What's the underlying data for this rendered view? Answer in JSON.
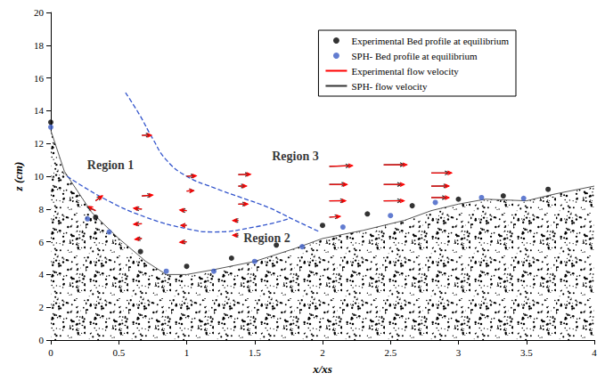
{
  "chart_data": {
    "type": "scatter",
    "x_label": "x/xs",
    "y_label": "z (cm)",
    "xlim": [
      0,
      4
    ],
    "xticks": [
      0,
      0.5,
      1,
      1.5,
      2,
      2.5,
      3,
      3.5,
      4
    ],
    "ylim": [
      0,
      20
    ],
    "yticks": [
      0,
      2,
      4,
      6,
      8,
      10,
      12,
      14,
      16,
      18,
      20
    ],
    "grid": false,
    "legend": "upper right",
    "series": [
      {
        "name": "Experimental Bed profile at equilibrium",
        "type": "scatter",
        "marker": "circle",
        "color": "#000000",
        "x": [
          0,
          0.33,
          0.66,
          1.0,
          1.33,
          1.66,
          2.0,
          2.33,
          2.66,
          3.0,
          3.33,
          3.66
        ],
        "values": [
          13.3,
          7.5,
          5.4,
          4.5,
          5.0,
          5.8,
          7.0,
          7.7,
          8.2,
          8.6,
          8.8,
          9.2
        ]
      },
      {
        "name": "SPH- Bed profile at equilibrium",
        "type": "scatter",
        "marker": "circle",
        "color": "#3b5bc4",
        "x": [
          0,
          0.27,
          0.43,
          0.85,
          1.2,
          1.5,
          1.85,
          2.15,
          2.5,
          2.83,
          3.17,
          3.48
        ],
        "values": [
          13.0,
          7.4,
          6.6,
          4.2,
          4.2,
          4.8,
          5.7,
          6.9,
          7.6,
          8.4,
          8.7,
          8.65
        ]
      },
      {
        "name": "Experimental flow velocity",
        "type": "vector",
        "color": "#ff0000",
        "vectors": [
          [
            0.33,
            8.5,
            0.05,
            0.3
          ],
          [
            0.33,
            7.9,
            -0.05,
            0.25
          ],
          [
            0.67,
            12.5,
            0.07,
            0.0
          ],
          [
            0.67,
            8.8,
            0.08,
            0.05
          ],
          [
            0.67,
            8.0,
            -0.06,
            0.05
          ],
          [
            0.67,
            7.1,
            -0.06,
            -0.03
          ],
          [
            0.67,
            6.2,
            -0.05,
            -0.05
          ],
          [
            1.0,
            10.0,
            0.07,
            0.03
          ],
          [
            1.0,
            9.1,
            0.05,
            0.02
          ],
          [
            1.0,
            7.9,
            -0.05,
            0.04
          ],
          [
            1.0,
            7.0,
            -0.04,
            0.0
          ],
          [
            1.0,
            6.0,
            -0.05,
            -0.03
          ],
          [
            1.38,
            10.1,
            0.09,
            0.02
          ],
          [
            1.38,
            9.4,
            0.06,
            0.0
          ],
          [
            1.38,
            8.3,
            0.07,
            0.0
          ],
          [
            1.38,
            7.3,
            -0.04,
            0.0
          ],
          [
            1.38,
            6.4,
            -0.04,
            0.0
          ],
          [
            2.05,
            10.6,
            0.17,
            0.05
          ],
          [
            2.05,
            9.5,
            0.13,
            0.0
          ],
          [
            2.05,
            8.5,
            0.12,
            0.0
          ],
          [
            2.05,
            7.5,
            0.08,
            0.05
          ],
          [
            2.45,
            10.7,
            0.17,
            0.0
          ],
          [
            2.45,
            9.5,
            0.15,
            0.0
          ],
          [
            2.45,
            8.5,
            0.15,
            0.0
          ],
          [
            2.8,
            10.2,
            0.15,
            0.0
          ],
          [
            2.8,
            9.4,
            0.13,
            0.0
          ],
          [
            2.8,
            8.7,
            0.13,
            0.0
          ]
        ]
      },
      {
        "name": "SPH- flow velocity",
        "type": "vector",
        "color": "#333333",
        "vectors": [
          [
            0.33,
            8.5,
            0.04,
            0.28
          ],
          [
            0.33,
            7.9,
            -0.06,
            0.22
          ],
          [
            0.67,
            12.5,
            0.06,
            0.02
          ],
          [
            0.67,
            8.8,
            0.07,
            0.04
          ],
          [
            0.67,
            8.0,
            -0.05,
            0.04
          ],
          [
            0.67,
            7.1,
            -0.05,
            -0.02
          ],
          [
            0.67,
            6.2,
            -0.04,
            -0.04
          ],
          [
            1.0,
            10.0,
            0.06,
            0.02
          ],
          [
            1.0,
            9.1,
            0.05,
            0.03
          ],
          [
            1.0,
            7.9,
            -0.04,
            0.03
          ],
          [
            1.0,
            7.0,
            -0.04,
            0.01
          ],
          [
            1.0,
            6.0,
            -0.04,
            -0.02
          ],
          [
            1.38,
            10.1,
            0.08,
            0.01
          ],
          [
            1.38,
            9.4,
            0.05,
            0.01
          ],
          [
            1.38,
            8.3,
            0.06,
            0.01
          ],
          [
            1.38,
            7.3,
            -0.03,
            0.01
          ],
          [
            1.38,
            6.4,
            -0.03,
            0.0
          ],
          [
            2.05,
            10.6,
            0.15,
            0.04
          ],
          [
            2.05,
            9.5,
            0.12,
            0.01
          ],
          [
            2.05,
            8.5,
            0.11,
            0.01
          ],
          [
            2.05,
            7.5,
            0.07,
            0.04
          ],
          [
            2.45,
            10.7,
            0.15,
            0.01
          ],
          [
            2.45,
            9.5,
            0.13,
            0.0
          ],
          [
            2.45,
            8.5,
            0.13,
            0.01
          ],
          [
            2.8,
            10.2,
            0.13,
            0.0
          ],
          [
            2.8,
            9.4,
            0.12,
            0.01
          ],
          [
            2.8,
            8.7,
            0.11,
            0.0
          ]
        ]
      }
    ],
    "bed_surface": {
      "color": "#ffffff",
      "x": [
        0,
        0.1,
        0.3,
        0.5,
        0.7,
        0.85,
        1.0,
        1.2,
        1.5,
        1.8,
        2.0,
        2.3,
        2.6,
        2.8,
        3.0,
        3.2,
        3.5,
        3.7,
        4.0
      ],
      "z": [
        12.8,
        10.3,
        7.8,
        6.2,
        4.8,
        4.0,
        4.0,
        4.3,
        4.8,
        5.6,
        6.2,
        6.7,
        7.3,
        7.9,
        8.3,
        8.6,
        8.5,
        8.9,
        9.4
      ]
    },
    "region_boundaries": [
      {
        "color": "#3355cc",
        "line_style": "dashed",
        "x": [
          0.12,
          0.4,
          0.7,
          1.0,
          1.2,
          1.5,
          1.75
        ],
        "z": [
          10.0,
          8.6,
          7.5,
          6.8,
          6.6,
          6.9,
          7.4
        ]
      },
      {
        "color": "#3355cc",
        "line_style": "dashed",
        "x": [
          0.55,
          0.65,
          0.75,
          0.85,
          1.0,
          1.2,
          1.4,
          1.6,
          1.8,
          1.98
        ],
        "z": [
          15.1,
          13.8,
          12.3,
          11.0,
          10.0,
          9.3,
          8.7,
          8.1,
          7.3,
          6.6
        ]
      }
    ],
    "annotations": [
      {
        "text": "Region 1",
        "x": 0.44,
        "z": 10.7
      },
      {
        "text": "Region 3",
        "x": 1.8,
        "z": 11.25
      },
      {
        "text": "Region 2",
        "x": 1.59,
        "z": 6.2
      }
    ]
  }
}
